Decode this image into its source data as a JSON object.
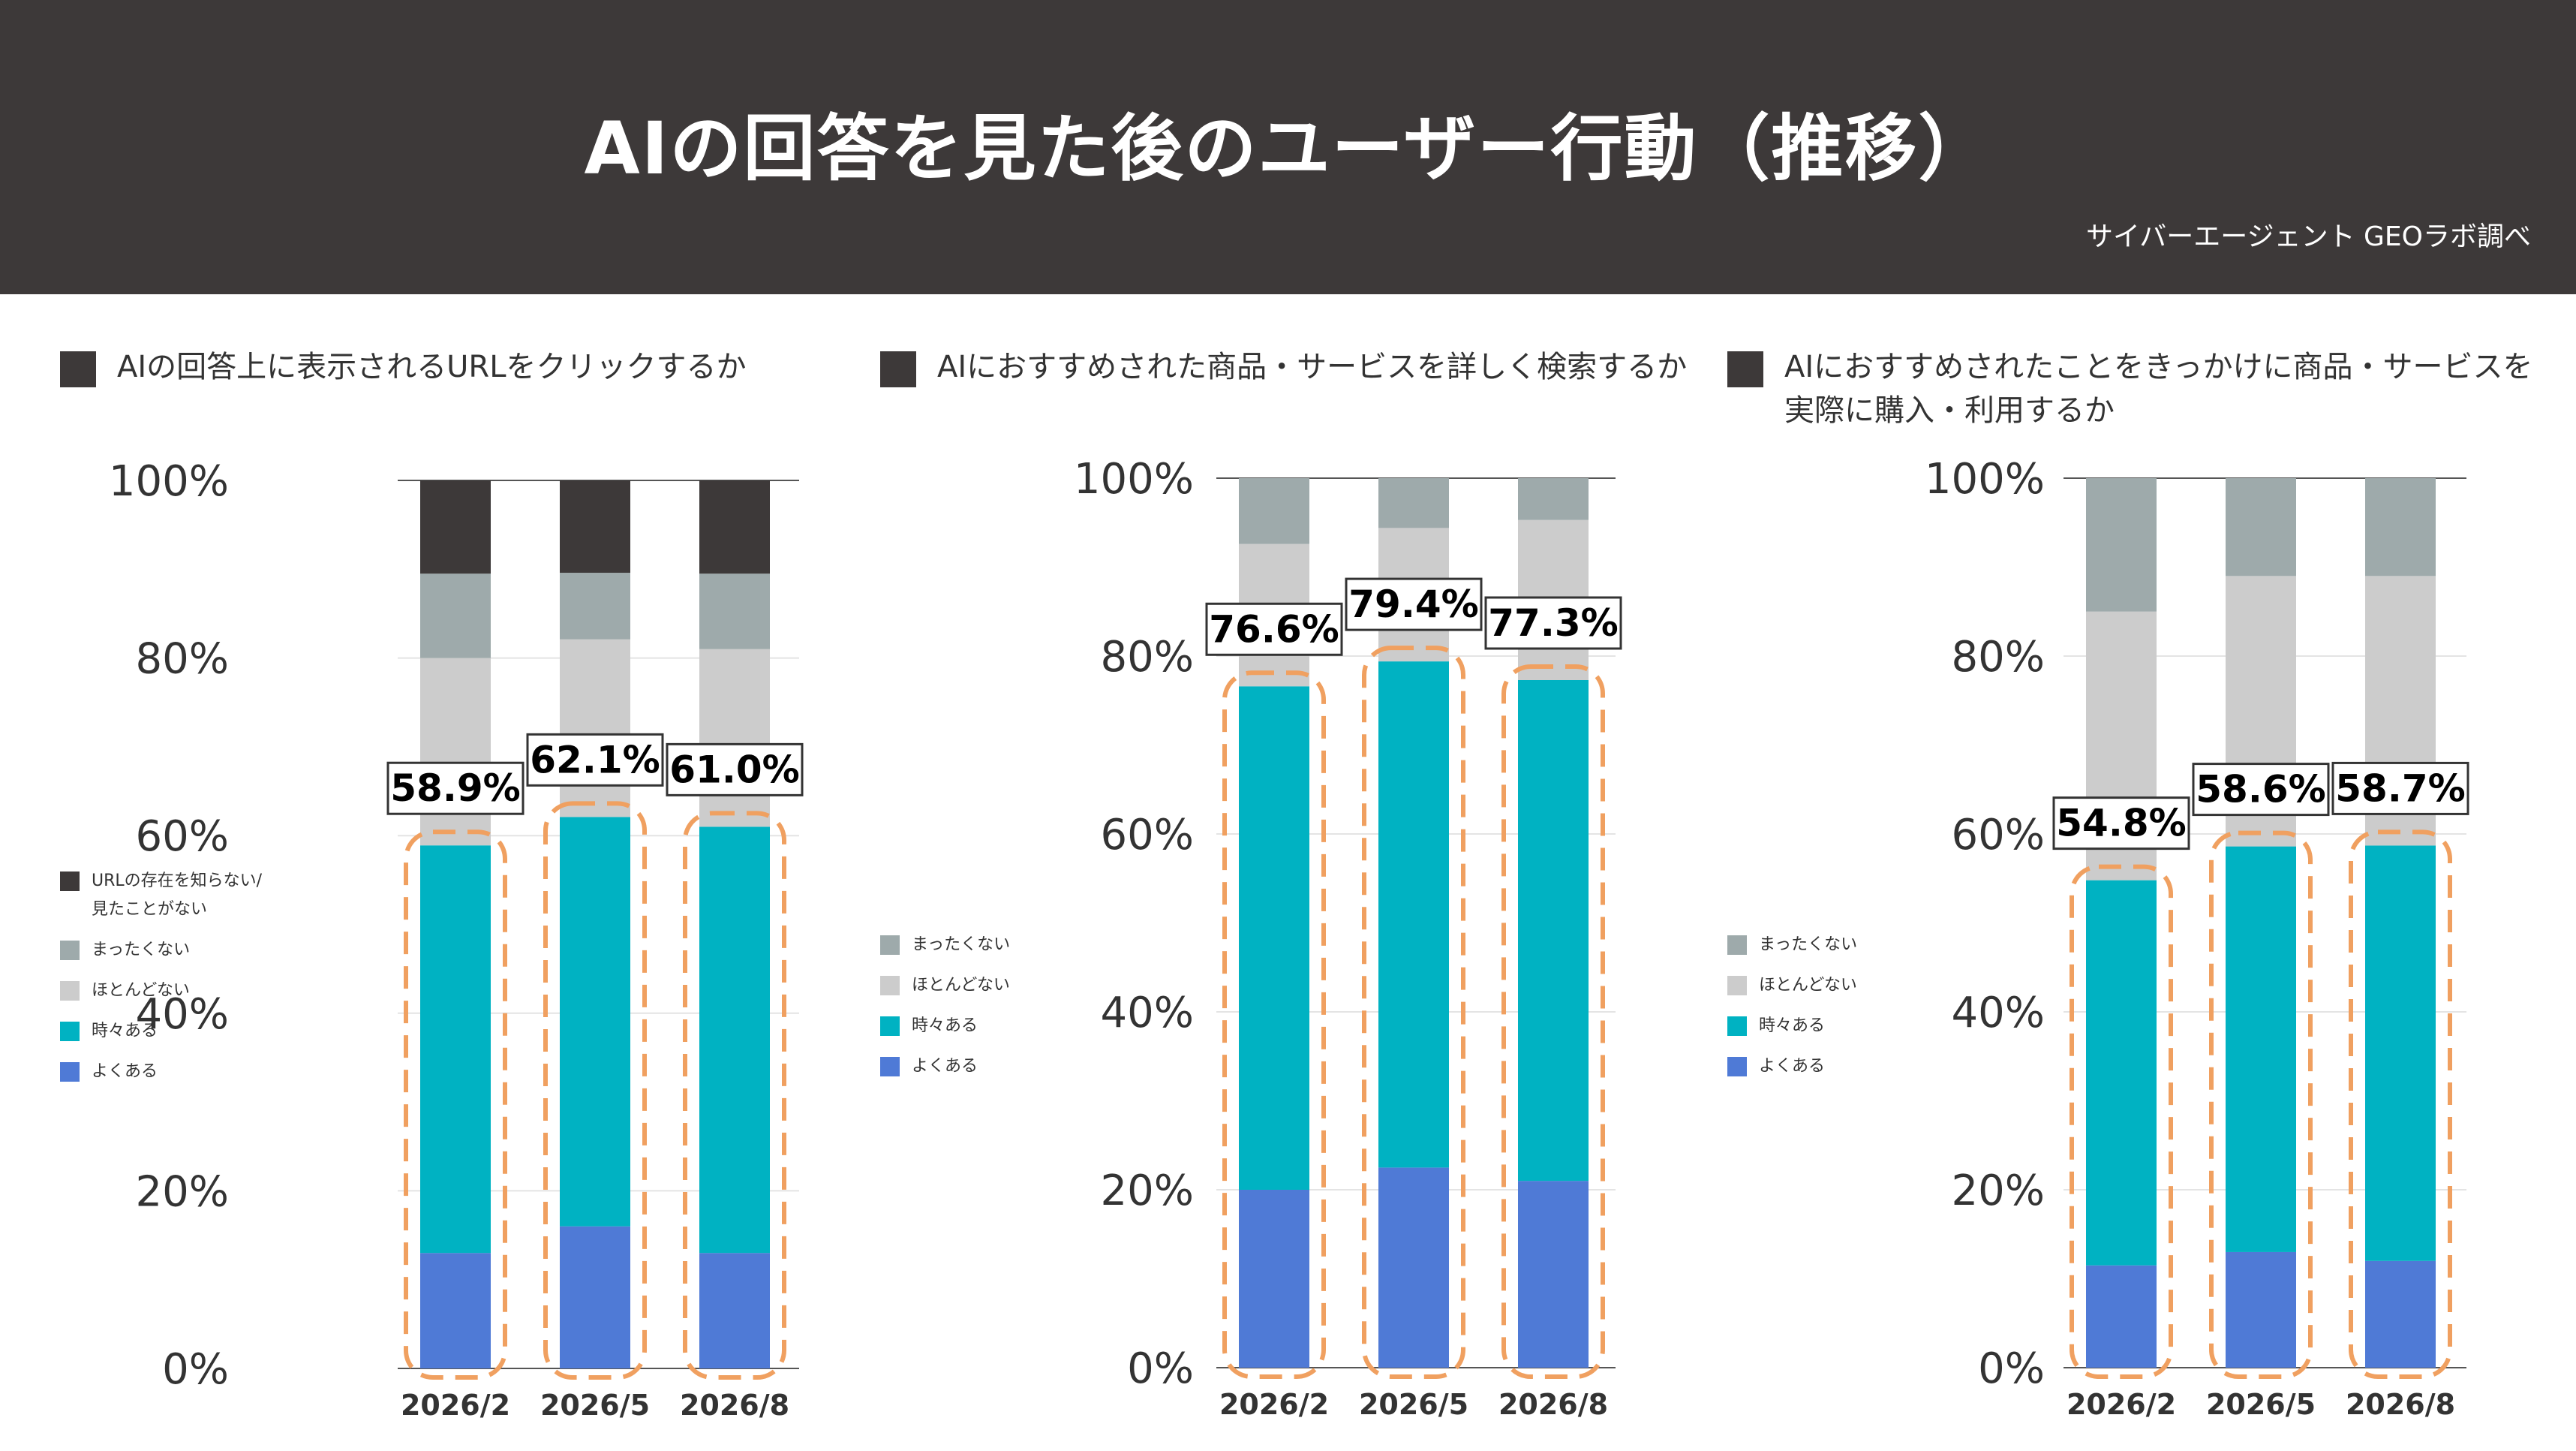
{
  "header": {
    "title": "AIの回答を見た後のユーザー行動（推移）",
    "source": "サイバーエージェント GEOラボ調べ"
  },
  "colors": {
    "header_bg": "#3d3939",
    "よくある": "#4f7ad6",
    "時々ある": "#00b2c2",
    "ほとんどない": "#cccccc",
    "まったくない": "#9eaaab",
    "URLの存在を知らない/見たことがない": "#3d3939",
    "highlight": "#f0a060"
  },
  "chart_data": [
    {
      "type": "bar",
      "stacked": true,
      "title": "AIの回答上に表示されるURLをクリックするか",
      "categories": [
        "2026/2",
        "2026/5",
        "2026/8"
      ],
      "ylim": [
        0,
        100
      ],
      "yticks": [
        "0%",
        "20%",
        "40%",
        "60%",
        "80%",
        "100%"
      ],
      "series": [
        {
          "name": "よくある",
          "values": [
            13,
            16,
            13
          ]
        },
        {
          "name": "時々ある",
          "values": [
            45.9,
            46.1,
            48
          ]
        },
        {
          "name": "ほとんどない",
          "values": [
            21.1,
            20,
            20
          ]
        },
        {
          "name": "まったくない",
          "values": [
            9.5,
            7.5,
            8.5
          ]
        },
        {
          "name": "URLの存在を知らない/見たことがない",
          "values": [
            10.5,
            10.4,
            10.5
          ]
        }
      ],
      "annotations": [
        "58.9%",
        "62.1%",
        "61.0%"
      ],
      "legend": [
        "URLの存在を知らない/見たことがない",
        "まったくない",
        "ほとんどない",
        "時々ある",
        "よくある"
      ],
      "legend_labels": [
        "URLの存在を知らない/\n見たことがない",
        "まったくない",
        "ほとんどない",
        "時々ある",
        "よくある"
      ]
    },
    {
      "type": "bar",
      "stacked": true,
      "title": "AIにおすすめされた商品・サービスを詳しく検索するか",
      "categories": [
        "2026/2",
        "2026/5",
        "2026/8"
      ],
      "ylim": [
        0,
        100
      ],
      "yticks": [
        "0%",
        "20%",
        "40%",
        "60%",
        "80%",
        "100%"
      ],
      "series": [
        {
          "name": "よくある",
          "values": [
            20,
            22.5,
            21
          ]
        },
        {
          "name": "時々ある",
          "values": [
            56.6,
            56.9,
            56.3
          ]
        },
        {
          "name": "ほとんどない",
          "values": [
            16,
            15,
            18
          ]
        },
        {
          "name": "まったくない",
          "values": [
            7.4,
            5.6,
            4.7
          ]
        }
      ],
      "annotations": [
        "76.6%",
        "79.4%",
        "77.3%"
      ],
      "legend": [
        "まったくない",
        "ほとんどない",
        "時々ある",
        "よくある"
      ],
      "legend_labels": [
        "まったくない",
        "ほとんどない",
        "時々ある",
        "よくある"
      ]
    },
    {
      "type": "bar",
      "stacked": true,
      "title": "AIにおすすめされたことをきっかけに商品・サービスを実際に購入・利用するか",
      "categories": [
        "2026/2",
        "2026/5",
        "2026/8"
      ],
      "ylim": [
        0,
        100
      ],
      "yticks": [
        "0%",
        "20%",
        "40%",
        "60%",
        "80%",
        "100%"
      ],
      "series": [
        {
          "name": "よくある",
          "values": [
            11.5,
            13,
            12
          ]
        },
        {
          "name": "時々ある",
          "values": [
            43.3,
            45.6,
            46.7
          ]
        },
        {
          "name": "ほとんどない",
          "values": [
            30.2,
            30.4,
            30.3
          ]
        },
        {
          "name": "まったくない",
          "values": [
            15,
            11,
            11
          ]
        }
      ],
      "annotations": [
        "54.8%",
        "58.6%",
        "58.7%"
      ],
      "legend": [
        "まったくない",
        "ほとんどない",
        "時々ある",
        "よくある"
      ],
      "legend_labels": [
        "まったくない",
        "ほとんどない",
        "時々ある",
        "よくある"
      ]
    }
  ]
}
